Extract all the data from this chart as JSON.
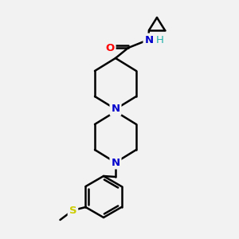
{
  "background_color": "#f2f2f2",
  "atom_colors": {
    "C": "#000000",
    "N": "#0000cc",
    "O": "#ff0000",
    "S": "#cccc00",
    "H": "#20b2aa"
  },
  "bond_color": "#000000",
  "bond_width": 1.8,
  "figsize": [
    3.0,
    3.0
  ],
  "dpi": 100
}
